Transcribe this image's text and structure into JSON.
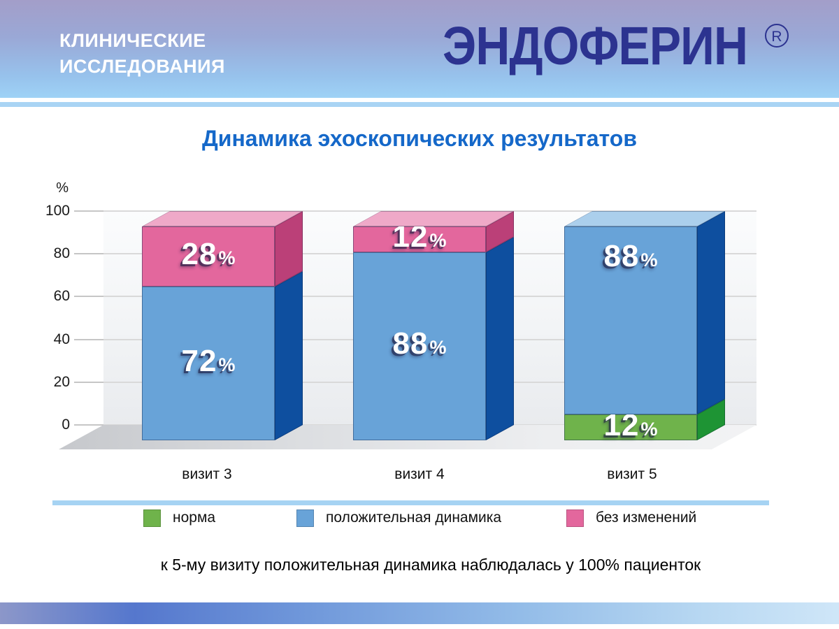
{
  "header": {
    "label_line1": "КЛИНИЧЕСКИЕ",
    "label_line2": "ИССЛЕДОВАНИЯ",
    "brand": "ЭНДОФЕРИН",
    "registered_mark": "R"
  },
  "slide_title": "Динамика эхоскопических результатов",
  "chart_data": {
    "type": "bar",
    "subtype": "stacked-3d-column",
    "title": "Динамика эхоскопических результатов",
    "xlabel": "",
    "ylabel": "%",
    "ylim": [
      0,
      100
    ],
    "yticks": [
      0,
      20,
      40,
      60,
      80,
      100
    ],
    "grid": true,
    "legend_position": "bottom",
    "categories": [
      "визит 3",
      "визит 4",
      "визит 5"
    ],
    "series": [
      {
        "name": "норма",
        "values": [
          0,
          0,
          12
        ],
        "color_front": "#6fb34b",
        "color_side": "#1e9434",
        "color_top": "#a8d58b"
      },
      {
        "name": "положительная динамика",
        "values": [
          72,
          88,
          88
        ],
        "color_front": "#68a3d8",
        "color_side": "#0e4f9f",
        "color_top": "#abcfec"
      },
      {
        "name": "без изменений",
        "values": [
          28,
          12,
          0
        ],
        "color_front": "#e3679d",
        "color_side": "#bb4078",
        "color_top": "#efa9c8"
      }
    ],
    "value_label_suffix": "%"
  },
  "footnote": "к 5-му визиту положительная динамика наблюдалась у 100% пациенток",
  "theme": {
    "header-top": "#a39ec9",
    "header-mid": "#9aa8d6",
    "header-low": "#97c2ec",
    "header-bottom": "#9ed2f6",
    "stripe-blue": "#a9d4f4",
    "brand-navy": "#2c3390",
    "title-blue": "#1568c9",
    "text-dark": "#1a1a1a",
    "grid": "#d9d9d9",
    "tick": "#c6c6c6",
    "wall-top": "#fbfcfd",
    "wall-bottom": "#e9ebee",
    "floor-dark": "#c6c8cc",
    "floor-light": "#f2f3f4",
    "separator": "#a6d3f3",
    "footer-a": "#8c97c9",
    "footer-b": "#5577cd",
    "footer-c": "#93bce8",
    "footer-d": "#cfe6f8"
  }
}
